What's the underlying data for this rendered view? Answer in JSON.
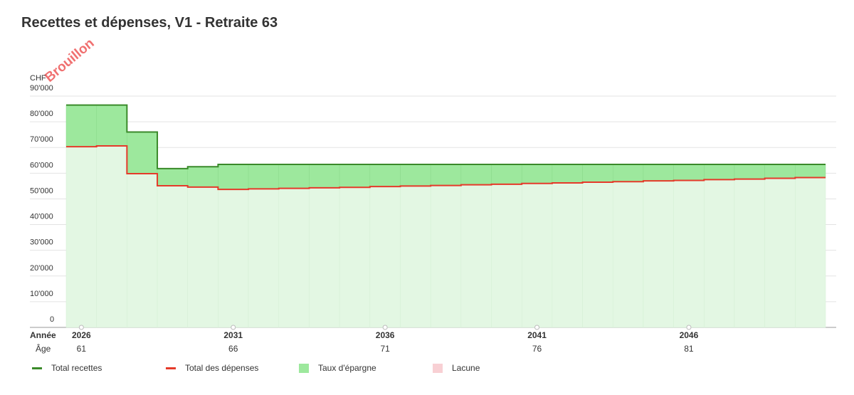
{
  "watermark": "Brouillon",
  "chart_data": {
    "type": "step-area",
    "title": "Recettes et dépenses, V1 - Retraite 63",
    "y_unit": "CHF",
    "x_row_label": "Année",
    "age_row_label": "Âge",
    "categories": [
      "2026",
      null,
      null,
      null,
      null,
      "2031",
      null,
      null,
      null,
      null,
      "2036",
      null,
      null,
      null,
      null,
      "2041",
      null,
      null,
      null,
      null,
      "2046",
      null,
      null,
      null,
      null
    ],
    "ages": [
      "61",
      null,
      null,
      null,
      null,
      "66",
      null,
      null,
      null,
      null,
      "71",
      null,
      null,
      null,
      null,
      "76",
      null,
      null,
      null,
      null,
      "81",
      null,
      null,
      null,
      null
    ],
    "series": [
      {
        "name": "Total recettes",
        "color": "#3a8a2a",
        "values": [
          86500,
          86500,
          76000,
          61800,
          62500,
          63400,
          63400,
          63400,
          63400,
          63400,
          63400,
          63400,
          63400,
          63400,
          63400,
          63400,
          63400,
          63400,
          63400,
          63400,
          63400,
          63400,
          63400,
          63400,
          63400
        ]
      },
      {
        "name": "Total des dépenses",
        "color": "#e53a2a",
        "values": [
          70300,
          70600,
          59800,
          55100,
          54600,
          53700,
          53900,
          54100,
          54300,
          54500,
          54800,
          55000,
          55200,
          55500,
          55700,
          56000,
          56200,
          56500,
          56700,
          57000,
          57200,
          57500,
          57700,
          58000,
          58300
        ]
      }
    ],
    "areas": [
      {
        "name": "Taux d'épargne",
        "color": "#9de89d"
      },
      {
        "name": "Lacune",
        "color": "#f8d0d4"
      }
    ],
    "base_fill": "#e3f7e3",
    "ylim": [
      0,
      90000
    ],
    "yticks": [
      0,
      {
        "value": 10000,
        "label": "10'000"
      },
      {
        "value": 20000,
        "label": "20'000"
      },
      {
        "value": 30000,
        "label": "30'000"
      },
      {
        "value": 40000,
        "label": "40'000"
      },
      {
        "value": 50000,
        "label": "50'000"
      },
      {
        "value": 60000,
        "label": "60'000"
      },
      {
        "value": 70000,
        "label": "70'000"
      },
      {
        "value": 80000,
        "label": "80'000"
      },
      {
        "value": 90000,
        "label": "90'000"
      }
    ],
    "grid": true
  }
}
